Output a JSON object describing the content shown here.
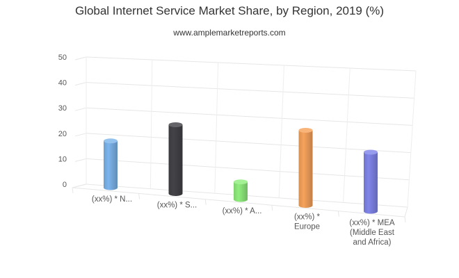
{
  "chart_data": {
    "type": "bar",
    "title": "Global Internet Service Market Share, by Region, 2019 (%)",
    "subtitle": "www.amplemarketreports.com",
    "categories": [
      [
        "(xx%) * N..."
      ],
      [
        "(xx%) * S..."
      ],
      [
        "(xx%) * A..."
      ],
      [
        "(xx%) *",
        "Europe"
      ],
      [
        "(xx%) * MEA",
        "(Middle East",
        "and Africa)"
      ]
    ],
    "values": [
      32,
      45,
      11,
      45,
      34
    ],
    "colors": [
      "#7cb5ec",
      "#434348",
      "#90ed7d",
      "#f7a35c",
      "#8085e9"
    ],
    "ylim": [
      0,
      50
    ],
    "yticks": [
      0,
      10,
      20,
      30,
      40,
      50
    ],
    "grid": true,
    "legend": "none",
    "style": "3d-cylinder"
  }
}
